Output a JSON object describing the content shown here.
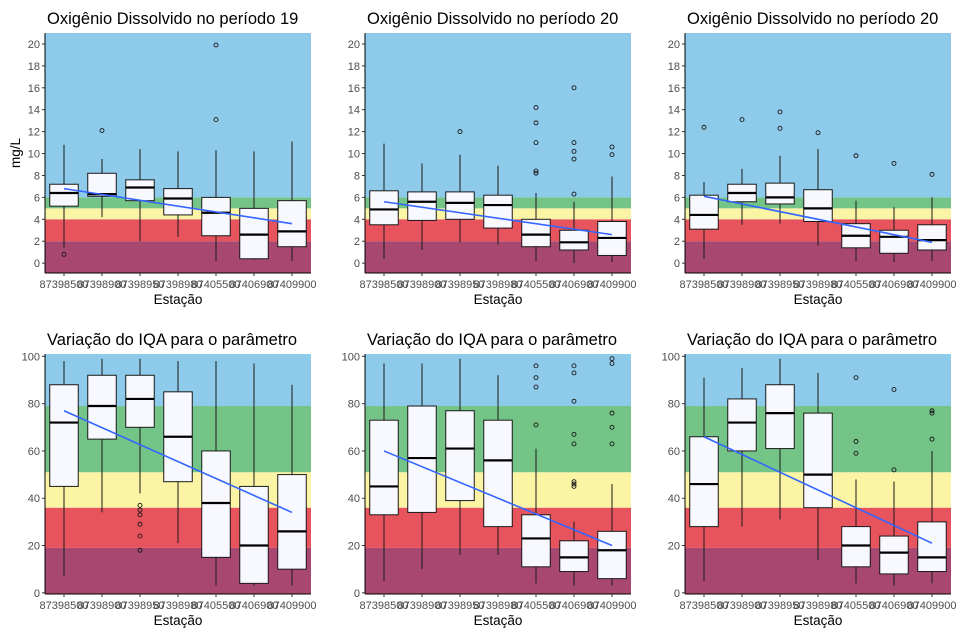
{
  "chart_data": [
    {
      "type": "boxplot",
      "title": "Oxigênio Dissolvido no período 19",
      "xlabel": "Estação",
      "ylabel": "mg/L",
      "categories": [
        "87398500",
        "87398900",
        "87398950",
        "87398980",
        "87405500",
        "87406900",
        "87409900"
      ],
      "ylim": [
        -0.9,
        21
      ],
      "yticks": [
        0,
        2,
        4,
        6,
        8,
        10,
        12,
        14,
        16,
        18,
        20
      ],
      "bands": [
        {
          "from": -0.9,
          "to": 2,
          "color": "#a84870"
        },
        {
          "from": 2,
          "to": 4,
          "color": "#e8545e"
        },
        {
          "from": 4,
          "to": 5,
          "color": "#fbf4a4"
        },
        {
          "from": 5,
          "to": 6,
          "color": "#74c487"
        },
        {
          "from": 6,
          "to": 21,
          "color": "#8ecbea"
        }
      ],
      "boxes": [
        {
          "min": 1.4,
          "q1": 5.2,
          "median": 6.4,
          "q3": 7.2,
          "max": 10.8,
          "outliers": [
            0.8
          ]
        },
        {
          "min": 4.2,
          "q1": 6.1,
          "median": 6.3,
          "q3": 8.2,
          "max": 9.5,
          "outliers": [
            12.1
          ]
        },
        {
          "min": 2.0,
          "q1": 5.7,
          "median": 6.9,
          "q3": 7.6,
          "max": 10.4,
          "outliers": []
        },
        {
          "min": 2.4,
          "q1": 4.4,
          "median": 5.9,
          "q3": 6.8,
          "max": 10.2,
          "outliers": []
        },
        {
          "min": 0.2,
          "q1": 2.5,
          "median": 4.6,
          "q3": 6.0,
          "max": 10.3,
          "outliers": [
            13.1,
            19.9
          ]
        },
        {
          "min": 0.3,
          "q1": 0.4,
          "median": 2.6,
          "q3": 5.0,
          "max": 10.2,
          "outliers": []
        },
        {
          "min": 0.2,
          "q1": 1.5,
          "median": 2.9,
          "q3": 5.7,
          "max": 11.1,
          "outliers": []
        }
      ],
      "trend": [
        6.8,
        3.6
      ]
    },
    {
      "type": "boxplot",
      "title": "Oxigênio Dissolvido no período 20",
      "xlabel": "Estação",
      "ylabel": "",
      "categories": [
        "87398500",
        "87398900",
        "87398950",
        "87398980",
        "87405500",
        "87406900",
        "87409900"
      ],
      "ylim": [
        -0.9,
        21
      ],
      "yticks": [
        0,
        2,
        4,
        6,
        8,
        10,
        12,
        14,
        16,
        18,
        20
      ],
      "bands": [
        {
          "from": -0.9,
          "to": 2,
          "color": "#a84870"
        },
        {
          "from": 2,
          "to": 4,
          "color": "#e8545e"
        },
        {
          "from": 4,
          "to": 5,
          "color": "#fbf4a4"
        },
        {
          "from": 5,
          "to": 6,
          "color": "#74c487"
        },
        {
          "from": 6,
          "to": 21,
          "color": "#8ecbea"
        }
      ],
      "boxes": [
        {
          "min": 0.4,
          "q1": 3.5,
          "median": 4.9,
          "q3": 6.6,
          "max": 10.9,
          "outliers": []
        },
        {
          "min": 1.2,
          "q1": 3.9,
          "median": 5.6,
          "q3": 6.5,
          "max": 9.1,
          "outliers": []
        },
        {
          "min": 1.9,
          "q1": 4.0,
          "median": 5.5,
          "q3": 6.5,
          "max": 9.9,
          "outliers": [
            12.0
          ]
        },
        {
          "min": 1.7,
          "q1": 3.2,
          "median": 5.3,
          "q3": 6.2,
          "max": 8.9,
          "outliers": []
        },
        {
          "min": 0.2,
          "q1": 1.5,
          "median": 2.6,
          "q3": 4.0,
          "max": 6.4,
          "outliers": [
            8.2,
            8.4,
            11.0,
            12.8,
            14.2
          ]
        },
        {
          "min": 0.0,
          "q1": 1.2,
          "median": 1.9,
          "q3": 3.0,
          "max": 5.6,
          "outliers": [
            6.3,
            9.5,
            10.2,
            11.0,
            16.0
          ]
        },
        {
          "min": 0.1,
          "q1": 0.7,
          "median": 2.3,
          "q3": 3.8,
          "max": 7.9,
          "outliers": [
            9.9,
            10.6
          ]
        }
      ],
      "trend": [
        5.6,
        2.6
      ]
    },
    {
      "type": "boxplot",
      "title": "Oxigênio Dissolvido no período 20",
      "xlabel": "Estação",
      "ylabel": "",
      "categories": [
        "87398500",
        "87398900",
        "87398950",
        "87398980",
        "87405500",
        "87406900",
        "87409900"
      ],
      "ylim": [
        -0.9,
        21
      ],
      "yticks": [
        0,
        2,
        4,
        6,
        8,
        10,
        12,
        14,
        16,
        18,
        20
      ],
      "bands": [
        {
          "from": -0.9,
          "to": 2,
          "color": "#a84870"
        },
        {
          "from": 2,
          "to": 4,
          "color": "#e8545e"
        },
        {
          "from": 4,
          "to": 5,
          "color": "#fbf4a4"
        },
        {
          "from": 5,
          "to": 6,
          "color": "#74c487"
        },
        {
          "from": 6,
          "to": 21,
          "color": "#8ecbea"
        }
      ],
      "boxes": [
        {
          "min": 0.4,
          "q1": 3.1,
          "median": 4.4,
          "q3": 6.2,
          "max": 7.4,
          "outliers": [
            12.4
          ]
        },
        {
          "min": 3.5,
          "q1": 5.6,
          "median": 6.4,
          "q3": 7.2,
          "max": 8.6,
          "outliers": [
            13.1
          ]
        },
        {
          "min": 3.6,
          "q1": 5.4,
          "median": 6.0,
          "q3": 7.3,
          "max": 9.8,
          "outliers": [
            12.3,
            13.8
          ]
        },
        {
          "min": 1.6,
          "q1": 3.8,
          "median": 5.0,
          "q3": 6.7,
          "max": 10.4,
          "outliers": [
            11.9
          ]
        },
        {
          "min": 0.2,
          "q1": 1.4,
          "median": 2.5,
          "q3": 3.6,
          "max": 5.7,
          "outliers": [
            9.8
          ]
        },
        {
          "min": 0.1,
          "q1": 0.9,
          "median": 2.4,
          "q3": 3.0,
          "max": 5.1,
          "outliers": [
            9.1
          ]
        },
        {
          "min": 0.2,
          "q1": 1.2,
          "median": 2.1,
          "q3": 3.5,
          "max": 6.0,
          "outliers": [
            8.1
          ]
        }
      ],
      "trend": [
        6.1,
        1.9
      ]
    },
    {
      "type": "boxplot",
      "title": "Variação do IQA para o parâmetro",
      "xlabel": "Estação",
      "ylabel": "",
      "categories": [
        "87398500",
        "87398900",
        "87398950",
        "87398980",
        "87405500",
        "87406900",
        "87409900"
      ],
      "ylim": [
        -0.5,
        101
      ],
      "yticks": [
        0,
        20,
        40,
        60,
        80,
        100
      ],
      "bands": [
        {
          "from": -0.5,
          "to": 19,
          "color": "#a84870"
        },
        {
          "from": 19,
          "to": 36,
          "color": "#e8545e"
        },
        {
          "from": 36,
          "to": 51,
          "color": "#fbf4a4"
        },
        {
          "from": 51,
          "to": 79,
          "color": "#74c487"
        },
        {
          "from": 79,
          "to": 101,
          "color": "#8ecbea"
        }
      ],
      "boxes": [
        {
          "min": 7,
          "q1": 45,
          "median": 72,
          "q3": 88,
          "max": 98,
          "outliers": []
        },
        {
          "min": 34,
          "q1": 65,
          "median": 79,
          "q3": 92,
          "max": 99,
          "outliers": []
        },
        {
          "min": 42,
          "q1": 70,
          "median": 82,
          "q3": 92,
          "max": 99,
          "outliers": [
            18,
            24,
            29,
            33,
            35,
            37
          ]
        },
        {
          "min": 21,
          "q1": 47,
          "median": 66,
          "q3": 85,
          "max": 98,
          "outliers": []
        },
        {
          "min": 3,
          "q1": 15,
          "median": 38,
          "q3": 60,
          "max": 98,
          "outliers": []
        },
        {
          "min": 3,
          "q1": 4,
          "median": 20,
          "q3": 45,
          "max": 97,
          "outliers": []
        },
        {
          "min": 3,
          "q1": 10,
          "median": 26,
          "q3": 50,
          "max": 88,
          "outliers": []
        }
      ],
      "trend": [
        77,
        34
      ]
    },
    {
      "type": "boxplot",
      "title": "Variação do IQA para o parâmetro",
      "xlabel": "Estação",
      "ylabel": "",
      "categories": [
        "87398500",
        "87398900",
        "87398950",
        "87398980",
        "87405500",
        "87406900",
        "87409900"
      ],
      "ylim": [
        -0.5,
        101
      ],
      "yticks": [
        0,
        20,
        40,
        60,
        80,
        100
      ],
      "bands": [
        {
          "from": -0.5,
          "to": 19,
          "color": "#a84870"
        },
        {
          "from": 19,
          "to": 36,
          "color": "#e8545e"
        },
        {
          "from": 36,
          "to": 51,
          "color": "#fbf4a4"
        },
        {
          "from": 51,
          "to": 79,
          "color": "#74c487"
        },
        {
          "from": 79,
          "to": 101,
          "color": "#8ecbea"
        }
      ],
      "boxes": [
        {
          "min": 5,
          "q1": 33,
          "median": 45,
          "q3": 73,
          "max": 97,
          "outliers": []
        },
        {
          "min": 10,
          "q1": 34,
          "median": 57,
          "q3": 79,
          "max": 97,
          "outliers": []
        },
        {
          "min": 16,
          "q1": 39,
          "median": 61,
          "q3": 77,
          "max": 99,
          "outliers": []
        },
        {
          "min": 16,
          "q1": 28,
          "median": 56,
          "q3": 73,
          "max": 92,
          "outliers": []
        },
        {
          "min": 4,
          "q1": 11,
          "median": 23,
          "q3": 33,
          "max": 61,
          "outliers": [
            71,
            87,
            91,
            96
          ]
        },
        {
          "min": 3,
          "q1": 9,
          "median": 15,
          "q3": 22,
          "max": 30,
          "outliers": [
            45,
            46,
            47,
            63,
            67,
            81,
            93,
            96
          ]
        },
        {
          "min": 3,
          "q1": 6,
          "median": 18,
          "q3": 26,
          "max": 46,
          "outliers": [
            63,
            70,
            76,
            97,
            99
          ]
        }
      ],
      "trend": [
        60,
        20
      ]
    },
    {
      "type": "boxplot",
      "title": "Variação do IQA para o parâmetro",
      "xlabel": "Estação",
      "ylabel": "",
      "categories": [
        "87398500",
        "87398900",
        "87398950",
        "87398980",
        "87405500",
        "87406900",
        "87409900"
      ],
      "ylim": [
        -0.5,
        101
      ],
      "yticks": [
        0,
        20,
        40,
        60,
        80,
        100
      ],
      "bands": [
        {
          "from": -0.5,
          "to": 19,
          "color": "#a84870"
        },
        {
          "from": 19,
          "to": 36,
          "color": "#e8545e"
        },
        {
          "from": 36,
          "to": 51,
          "color": "#fbf4a4"
        },
        {
          "from": 51,
          "to": 79,
          "color": "#74c487"
        },
        {
          "from": 79,
          "to": 101,
          "color": "#8ecbea"
        }
      ],
      "boxes": [
        {
          "min": 5,
          "q1": 28,
          "median": 46,
          "q3": 66,
          "max": 91,
          "outliers": []
        },
        {
          "min": 28,
          "q1": 60,
          "median": 72,
          "q3": 82,
          "max": 95,
          "outliers": []
        },
        {
          "min": 31,
          "q1": 61,
          "median": 76,
          "q3": 88,
          "max": 99,
          "outliers": []
        },
        {
          "min": 14,
          "q1": 36,
          "median": 50,
          "q3": 76,
          "max": 93,
          "outliers": []
        },
        {
          "min": 4,
          "q1": 11,
          "median": 20,
          "q3": 28,
          "max": 48,
          "outliers": [
            59,
            64,
            91
          ]
        },
        {
          "min": 3,
          "q1": 8,
          "median": 17,
          "q3": 24,
          "max": 47,
          "outliers": [
            52,
            86
          ]
        },
        {
          "min": 4,
          "q1": 9,
          "median": 15,
          "q3": 30,
          "max": 60,
          "outliers": [
            65,
            76,
            77
          ]
        }
      ],
      "trend": [
        66,
        21
      ]
    }
  ]
}
